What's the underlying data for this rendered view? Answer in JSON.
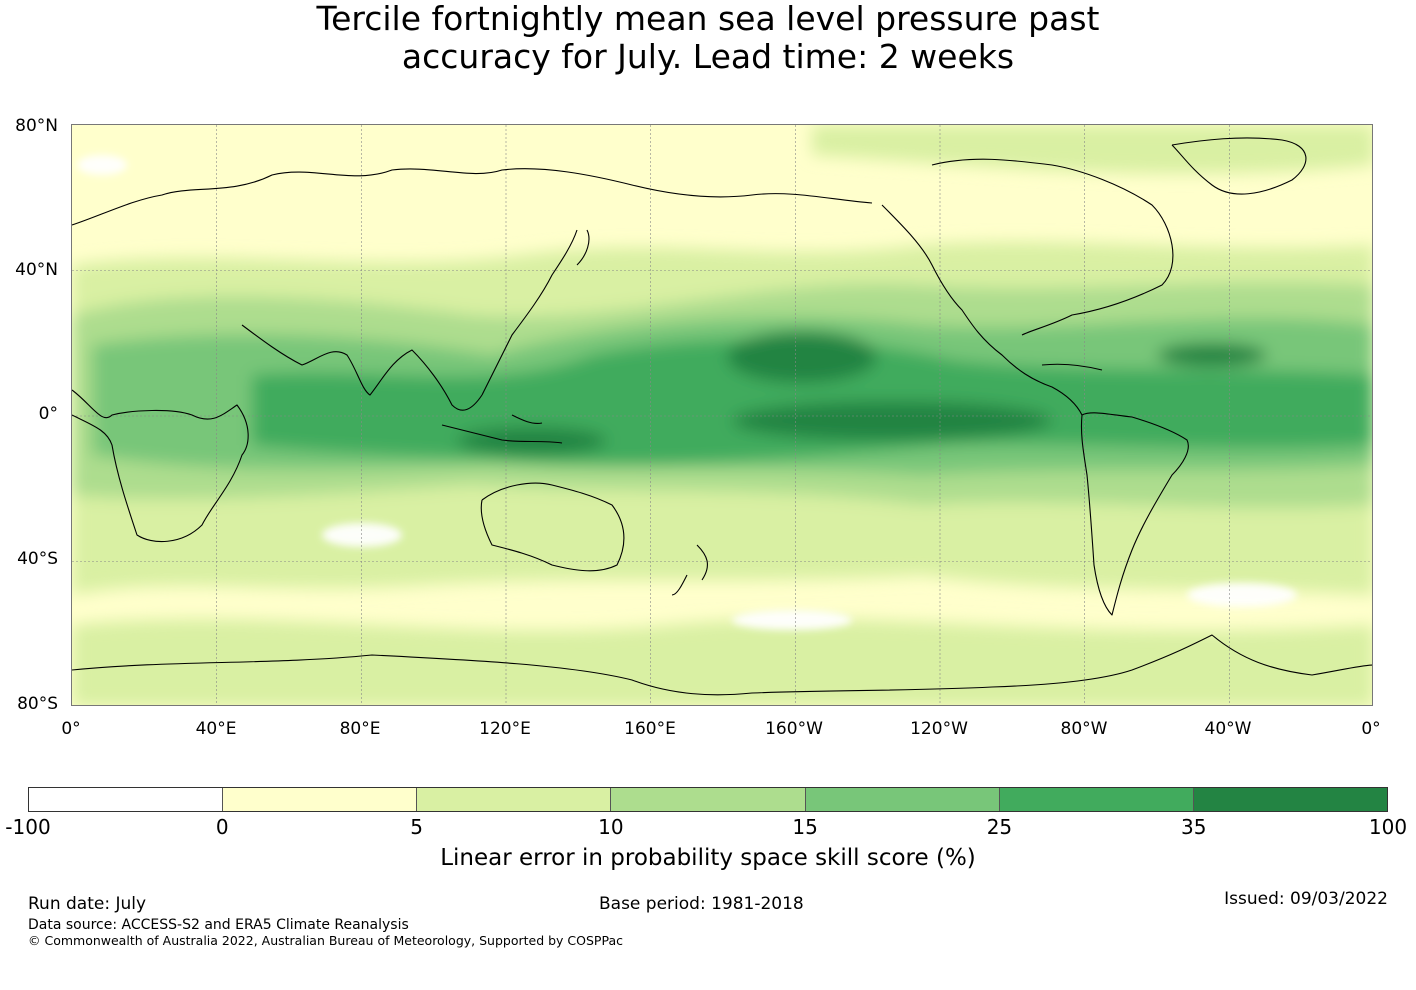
{
  "title_line1": "Tercile fortnightly mean sea level pressure past",
  "title_line2": "accuracy for July. Lead time: 2 weeks",
  "lat_labels": [
    "80°N",
    "40°N",
    "0°",
    "40°S",
    "80°S"
  ],
  "lon_labels": [
    "0°",
    "40°E",
    "80°E",
    "120°E",
    "160°E",
    "160°W",
    "120°W",
    "80°W",
    "40°W",
    "0°"
  ],
  "colorbar": {
    "colors": [
      "#ffffff",
      "#ffffcc",
      "#d9f0a3",
      "#addd8e",
      "#78c679",
      "#41ab5d",
      "#238443"
    ],
    "ticks": [
      "-100",
      "0",
      "5",
      "10",
      "15",
      "25",
      "35",
      "100"
    ],
    "label": "Linear error in probability space skill score (%)"
  },
  "footer": {
    "run_date": "Run date: July",
    "base_period": "Base period: 1981-2018",
    "issued": "Issued: 09/03/2022",
    "data_source": "Data source: ACCESS-S2 and ERA5 Climate Reanalysis",
    "copyright": "© Commonwealth of Australia 2022, Australian Bureau of Meteorology, Supported by COSPPac"
  }
}
